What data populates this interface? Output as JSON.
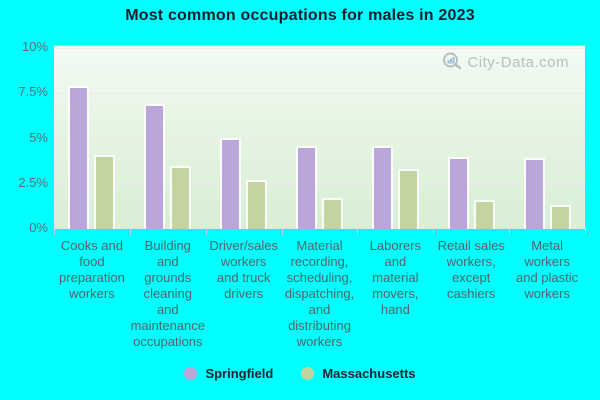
{
  "title": "Most common occupations for males in 2023",
  "watermark": "City-Data.com",
  "colors": {
    "background": "#00ffff",
    "springfield": "#bba6d9",
    "massachusetts": "#c2d4a0",
    "grid": "#f2e4f0",
    "axis_text": "#587074",
    "title_text": "#161e2e"
  },
  "y_axis": {
    "tick_labels": [
      "10%",
      "7.5%",
      "5%",
      "2.5%",
      "0%"
    ],
    "unit": "%"
  },
  "legend": {
    "items": [
      {
        "label": "Springfield",
        "color": "#bba6d9"
      },
      {
        "label": "Massachusetts",
        "color": "#c2d4a0"
      }
    ]
  },
  "chart_data": {
    "type": "bar",
    "title": "Most common occupations for males in 2023",
    "categories": [
      "Cooks and food preparation workers",
      "Building and grounds cleaning and maintenance occupations",
      "Driver/sales workers and truck drivers",
      "Material recording, scheduling, dispatching, and distributing workers",
      "Laborers and material movers, hand",
      "Retail sales workers, except cashiers",
      "Metal workers and plastic workers"
    ],
    "categories_wrapped": [
      [
        "Cooks and",
        "food",
        "preparation",
        "workers"
      ],
      [
        "Building",
        "and",
        "grounds",
        "cleaning",
        "and",
        "maintenance",
        "occupations"
      ],
      [
        "Driver/sales",
        "workers",
        "and truck",
        "drivers"
      ],
      [
        "Material",
        "recording,",
        "scheduling,",
        "dispatching,",
        "and",
        "distributing",
        "workers"
      ],
      [
        "Laborers",
        "and",
        "material",
        "movers,",
        "hand"
      ],
      [
        "Retail sales",
        "workers,",
        "except",
        "cashiers"
      ],
      [
        "Metal",
        "workers",
        "and plastic",
        "workers"
      ]
    ],
    "series": [
      {
        "name": "Springfield",
        "color": "#bba6d9",
        "values": [
          7.9,
          6.9,
          5.0,
          4.6,
          4.6,
          4.0,
          3.9
        ]
      },
      {
        "name": "Massachusetts",
        "color": "#c2d4a0",
        "values": [
          4.1,
          3.5,
          2.7,
          1.7,
          3.3,
          1.6,
          1.3
        ]
      }
    ],
    "unit": "%",
    "ylim": [
      0,
      10
    ],
    "y_ticks": [
      0,
      2.5,
      5,
      7.5,
      10
    ],
    "grid": true,
    "legend_position": "bottom"
  }
}
